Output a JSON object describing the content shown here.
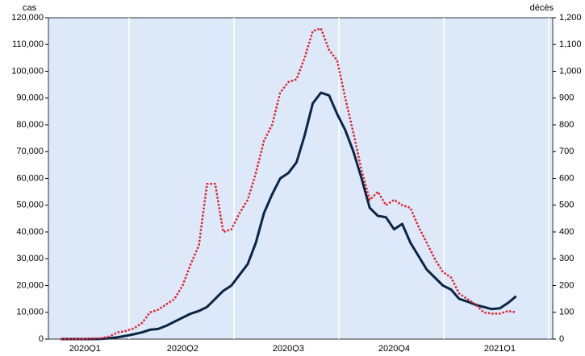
{
  "chart_data": {
    "type": "line",
    "y_label": "cas",
    "y2_label": "décès",
    "categories": [
      null,
      null,
      null,
      null,
      "2020Q1",
      null,
      null,
      null,
      null,
      null,
      null,
      null,
      null,
      null,
      null,
      null,
      "2020Q2",
      null,
      null,
      null,
      null,
      null,
      null,
      null,
      null,
      null,
      null,
      null,
      null,
      "2020Q3",
      null,
      null,
      null,
      null,
      null,
      null,
      null,
      null,
      null,
      null,
      null,
      null,
      "2020Q4",
      null,
      null,
      null,
      null,
      null,
      null,
      null,
      null,
      null,
      null,
      null,
      null,
      "2021Q1",
      null,
      null,
      null,
      null,
      null,
      null
    ],
    "series": [
      {
        "name": "cas",
        "color": "#0b2545",
        "style": "solid",
        "values": [
          null,
          0,
          0,
          0,
          0,
          0,
          100,
          300,
          700,
          1200,
          1800,
          2500,
          3500,
          3800,
          5000,
          6500,
          8000,
          9500,
          10500,
          12000,
          15000,
          18000,
          20000,
          24000,
          28000,
          36000,
          47000,
          54000,
          60000,
          62000,
          66000,
          76000,
          88000,
          92000,
          91000,
          84000,
          78000,
          70000,
          60000,
          49000,
          46000,
          45500,
          41000,
          43000,
          36000,
          31000,
          26000,
          23000,
          20000,
          18500,
          15000,
          14000,
          12800,
          12000,
          11200,
          11500,
          13500,
          16000,
          null,
          null,
          null,
          null
        ]
      },
      {
        "name": "décès",
        "color": "#e0242e",
        "style": "dotted",
        "axis": "y2",
        "values": [
          null,
          0,
          0,
          0,
          1,
          2,
          3,
          10,
          25,
          30,
          40,
          60,
          100,
          110,
          130,
          150,
          200,
          280,
          350,
          580,
          580,
          400,
          410,
          470,
          520,
          620,
          740,
          800,
          920,
          960,
          970,
          1050,
          1150,
          1160,
          1080,
          1040,
          900,
          770,
          630,
          520,
          550,
          500,
          520,
          500,
          490,
          420,
          360,
          300,
          250,
          230,
          170,
          150,
          130,
          100,
          95,
          95,
          105,
          100,
          null,
          null,
          null,
          null
        ]
      }
    ],
    "ylim": [
      0,
      120000
    ],
    "yticks": [
      0,
      {
        "value": 10000,
        "label": "10,000"
      },
      {
        "value": 20000,
        "label": "20,000"
      },
      {
        "value": 30000,
        "label": "30,000"
      },
      {
        "value": 40000,
        "label": "40,000"
      },
      {
        "value": 50000,
        "label": "50,000"
      },
      {
        "value": 60000,
        "label": "60,000"
      },
      {
        "value": 70000,
        "label": "70,000"
      },
      {
        "value": 80000,
        "label": "80,000"
      },
      {
        "value": 90000,
        "label": "90,000"
      },
      {
        "value": 100000,
        "label": "100,000"
      },
      {
        "value": 110000,
        "label": "110,000"
      },
      {
        "value": 120000,
        "label": "120,000"
      }
    ],
    "y2lim": [
      0,
      1200
    ],
    "y2ticks": [
      0,
      100,
      200,
      300,
      400,
      500,
      600,
      700,
      800,
      900,
      {
        "value": 1000,
        "label": "1,000"
      },
      {
        "value": 1100,
        "label": "1,100"
      },
      {
        "value": 1200,
        "label": "1,200"
      }
    ],
    "background": "#dde9f9"
  }
}
